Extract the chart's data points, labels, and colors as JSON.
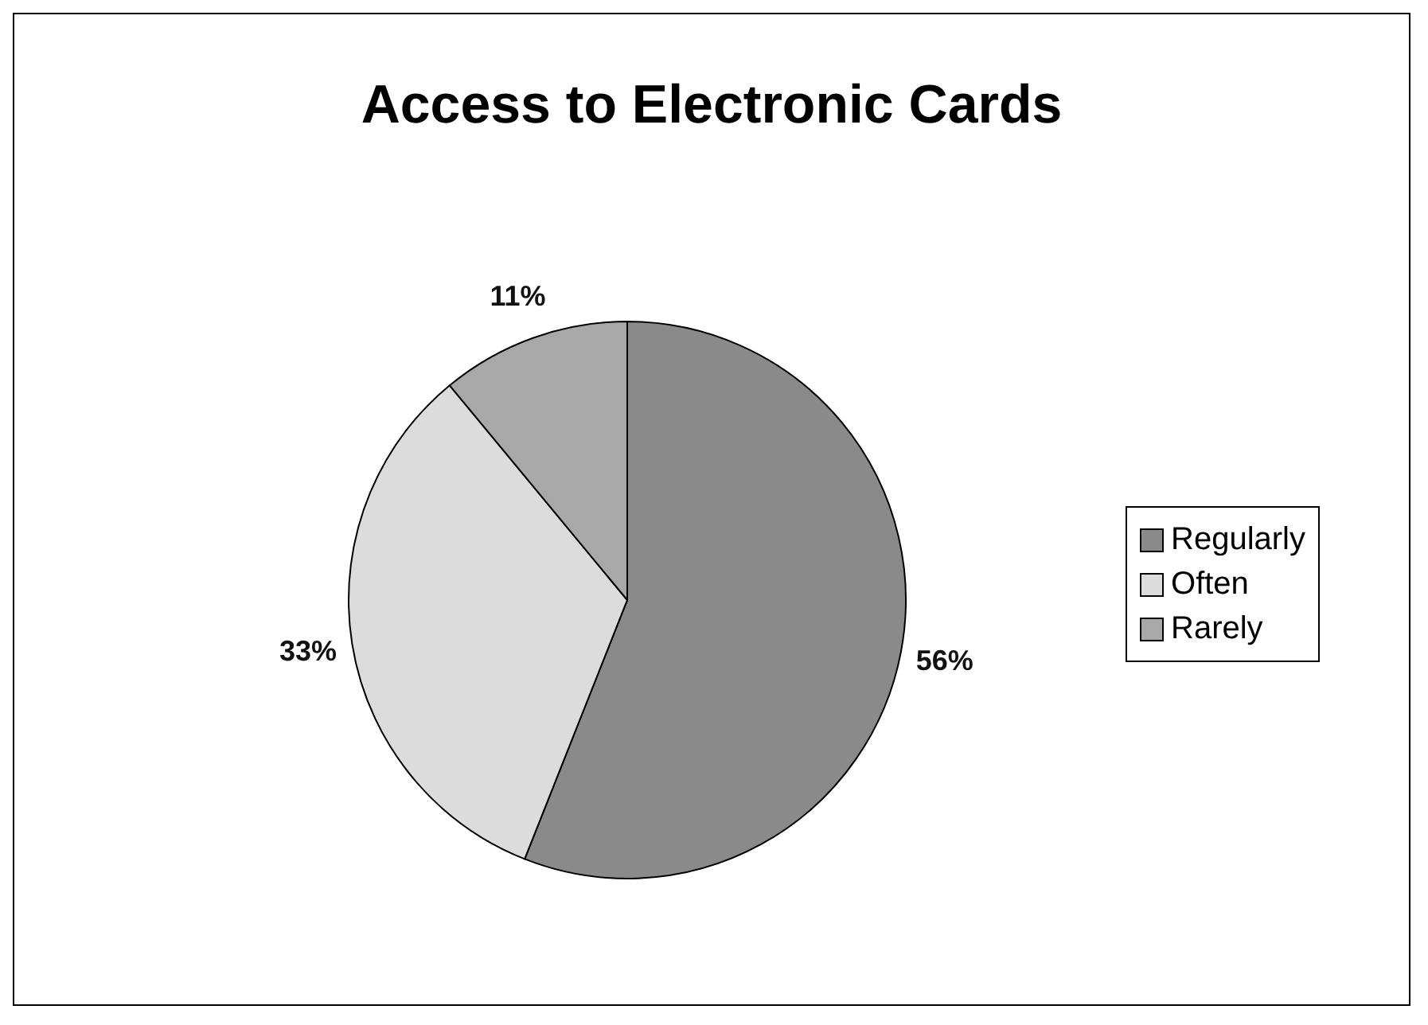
{
  "chart_data": {
    "type": "pie",
    "title": "Access to Electronic Cards",
    "categories": [
      "Regularly",
      "Often",
      "Rarely"
    ],
    "values": [
      56,
      33,
      11
    ],
    "value_labels": [
      "56%",
      "33%",
      "11%"
    ],
    "colors": [
      "#8a8a8a",
      "#dcdcdc",
      "#a8a8a8"
    ],
    "legend": "right"
  }
}
